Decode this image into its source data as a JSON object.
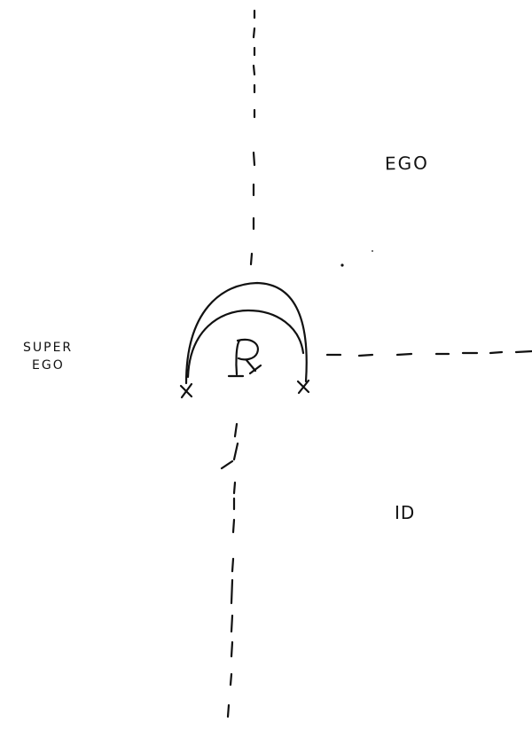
{
  "labels": {
    "ego": "EGO",
    "id": "ID",
    "superego_line1": "SUPER",
    "superego_line2": "EGO"
  },
  "colors": {
    "ink": "#111111",
    "paper": "#ffffff"
  }
}
